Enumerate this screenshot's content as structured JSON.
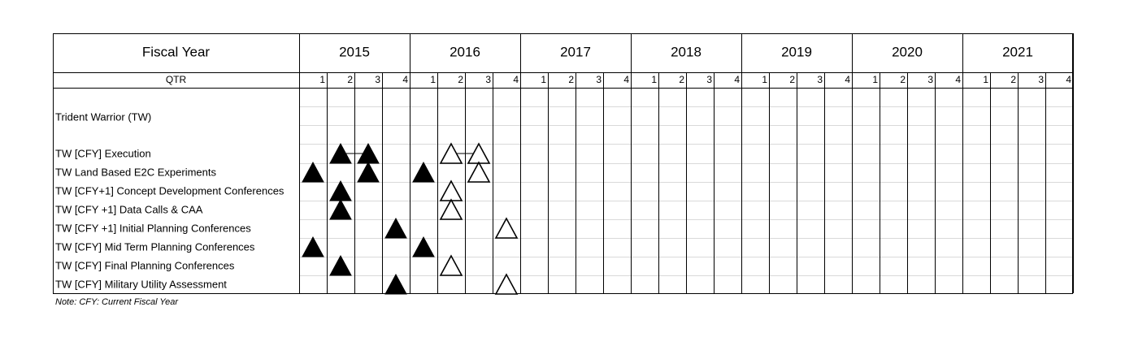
{
  "header": {
    "fiscal_year_label": "Fiscal Year",
    "qtr_label": "QTR"
  },
  "years": [
    "2015",
    "2016",
    "2017",
    "2018",
    "2019",
    "2020",
    "2021"
  ],
  "quarters": [
    "1",
    "2",
    "3",
    "4"
  ],
  "rows": [
    {
      "label": "Trident Warrior (TW)",
      "markers": []
    },
    {
      "label": "TW [CFY] Execution",
      "markers": [
        {
          "q": 2,
          "type": "filled"
        },
        {
          "q": 3,
          "type": "filled"
        },
        {
          "q": 6,
          "type": "open"
        },
        {
          "q": 7,
          "type": "open"
        }
      ],
      "connectors": [
        [
          2,
          3
        ],
        [
          6,
          7
        ]
      ]
    },
    {
      "label": "TW Land Based E2C Experiments",
      "markers": [
        {
          "q": 1,
          "type": "filled"
        },
        {
          "q": 3,
          "type": "filled"
        },
        {
          "q": 5,
          "type": "filled"
        },
        {
          "q": 7,
          "type": "open"
        }
      ]
    },
    {
      "label": "TW [CFY+1] Concept Development Conferences",
      "markers": [
        {
          "q": 2,
          "type": "filled"
        },
        {
          "q": 6,
          "type": "open"
        }
      ]
    },
    {
      "label": "TW [CFY +1] Data Calls & CAA",
      "markers": [
        {
          "q": 2,
          "type": "filled"
        },
        {
          "q": 6,
          "type": "open"
        }
      ]
    },
    {
      "label": "TW [CFY +1] Initial Planning Conferences",
      "markers": [
        {
          "q": 4,
          "type": "filled"
        },
        {
          "q": 8,
          "type": "open"
        }
      ]
    },
    {
      "label": "TW [CFY] Mid Term Planning Conferences",
      "markers": [
        {
          "q": 1,
          "type": "filled"
        },
        {
          "q": 5,
          "type": "filled"
        }
      ]
    },
    {
      "label": "TW [CFY] Final Planning Conferences",
      "markers": [
        {
          "q": 2,
          "type": "filled"
        },
        {
          "q": 6,
          "type": "open"
        }
      ]
    },
    {
      "label": "TW [CFY] Military Utility Assessment",
      "markers": [
        {
          "q": 4,
          "type": "filled"
        },
        {
          "q": 8,
          "type": "open"
        }
      ]
    }
  ],
  "note": "Note: CFY: Current Fiscal Year"
}
